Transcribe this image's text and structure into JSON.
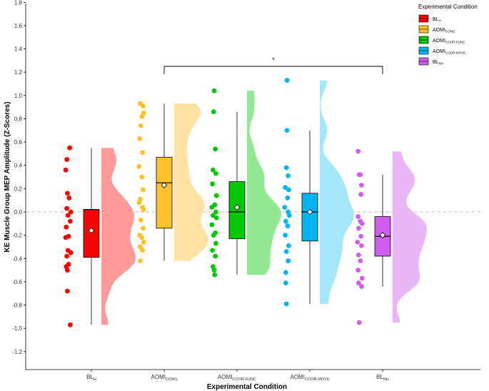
{
  "chart_data": {
    "type": "raincloud",
    "xlabel": "Experimental Condition",
    "ylabel": "KE Muscle Group MEP Amplitude (Z-Scores)",
    "ylim": [
      -1.35,
      1.8
    ],
    "yticks": [
      "-1.2",
      "-1.0",
      "-0.8",
      "-0.6",
      "-0.4",
      "-0.2",
      "0.0",
      "0.2",
      "0.4",
      "0.6",
      "0.8",
      "1.0",
      "1.2",
      "1.4",
      "1.6",
      "1.8"
    ],
    "reference_line": 0.0,
    "legend": {
      "title": "Experimental Condition",
      "position": "top-right"
    },
    "significance": {
      "label": "*",
      "from": "AOMI_CONG",
      "to": "BL_NH",
      "y": 1.25
    },
    "groups": [
      {
        "id": "BL_H",
        "label_main": "BL",
        "label_sub": "H",
        "color": "#ff0000",
        "cloud_color": "#ff9a9a",
        "box": {
          "min": -0.97,
          "q1": -0.39,
          "median": 0.02,
          "q3": 0.02,
          "max": 0.55,
          "mean": -0.16
        },
        "points": [
          0.55,
          0.45,
          0.36,
          0.16,
          0.12,
          0.03,
          0.0,
          -0.03,
          -0.08,
          -0.13,
          -0.21,
          -0.22,
          -0.33,
          -0.35,
          -0.38,
          -0.45,
          -0.47,
          -0.5,
          -0.68,
          -0.97
        ],
        "jitter": [
          0.02,
          -0.03,
          -0.05,
          -0.02,
          0.01,
          -0.03,
          0.04,
          -0.01,
          0.03,
          -0.04,
          0.0,
          -0.05,
          -0.01,
          0.04,
          -0.03,
          0.0,
          -0.04,
          -0.02,
          -0.02,
          0.03
        ]
      },
      {
        "id": "AOMI_CONG",
        "label_main": "AOMI",
        "label_sub": "CONG",
        "color": "#ffc12b",
        "cloud_color": "#ffe1a3",
        "box": {
          "min": -0.42,
          "q1": -0.14,
          "median": 0.25,
          "q3": 0.47,
          "max": 0.93,
          "mean": 0.23
        },
        "points": [
          0.93,
          0.91,
          0.85,
          0.82,
          0.74,
          0.63,
          0.51,
          0.39,
          0.3,
          0.19,
          0.11,
          0.08,
          0.04,
          0.02,
          -0.07,
          -0.14,
          -0.2,
          -0.22,
          -0.26,
          -0.3,
          -0.33,
          -0.42
        ],
        "jitter": [
          -0.02,
          0.03,
          0.04,
          0.01,
          -0.01,
          -0.03,
          0.02,
          -0.04,
          0.01,
          0.03,
          -0.02,
          -0.04,
          0.02,
          0.04,
          -0.01,
          0.03,
          -0.03,
          0.01,
          0.04,
          -0.02,
          0.02,
          -0.02
        ]
      },
      {
        "id": "AOMI_COOR_FUNC",
        "label_main": "AOMI",
        "label_sub": "COOR-FUNC",
        "color": "#00c800",
        "cloud_color": "#93e993",
        "box": {
          "min": -0.54,
          "q1": -0.23,
          "median": 0.0,
          "q3": 0.26,
          "max": 0.86,
          "mean": 0.04
        },
        "points": [
          1.04,
          0.86,
          0.54,
          0.36,
          0.33,
          0.24,
          0.14,
          0.06,
          0.04,
          0.0,
          -0.03,
          -0.05,
          -0.11,
          -0.18,
          -0.2,
          -0.27,
          -0.33,
          -0.38,
          -0.47,
          -0.5,
          -0.54
        ],
        "jitter": [
          0.0,
          -0.01,
          0.02,
          -0.02,
          0.03,
          -0.03,
          0.04,
          0.01,
          -0.04,
          0.03,
          -0.02,
          0.04,
          -0.04,
          0.02,
          -0.01,
          0.03,
          -0.03,
          0.02,
          -0.02,
          0.0,
          0.01
        ]
      },
      {
        "id": "AOMI_COOR_MOVE",
        "label_main": "AOMI",
        "label_sub": "COOR-MOVE",
        "color": "#00b6f2",
        "cloud_color": "#a5e6fb",
        "box": {
          "min": -0.79,
          "q1": -0.25,
          "median": 0.0,
          "q3": 0.16,
          "max": 0.7,
          "mean": 0.0
        },
        "points": [
          1.13,
          0.7,
          0.38,
          0.31,
          0.21,
          0.19,
          0.12,
          0.04,
          0.0,
          -0.03,
          -0.08,
          -0.12,
          -0.2,
          -0.29,
          -0.34,
          -0.42,
          -0.52,
          -0.61,
          -0.79
        ],
        "jitter": [
          0.0,
          0.0,
          -0.01,
          0.02,
          -0.03,
          0.03,
          0.01,
          -0.04,
          0.02,
          0.04,
          -0.02,
          0.01,
          -0.03,
          0.03,
          -0.01,
          0.02,
          -0.02,
          -0.02,
          -0.01
        ]
      },
      {
        "id": "BL_NH",
        "label_main": "BL",
        "label_sub": "NH",
        "color": "#cf5ef0",
        "cloud_color": "#e8b6f5",
        "box": {
          "min": -0.64,
          "q1": -0.38,
          "median": -0.21,
          "q3": -0.04,
          "max": 0.32,
          "mean": -0.2
        },
        "points": [
          0.52,
          0.32,
          0.32,
          0.23,
          0.15,
          -0.04,
          -0.08,
          -0.1,
          -0.14,
          -0.21,
          -0.26,
          -0.29,
          -0.37,
          -0.42,
          -0.5,
          -0.57,
          -0.61,
          -0.64,
          -0.95
        ],
        "jitter": [
          -0.03,
          -0.01,
          0.01,
          0.03,
          0.02,
          -0.03,
          0.01,
          0.04,
          -0.02,
          0.02,
          -0.04,
          0.03,
          -0.02,
          0.01,
          -0.03,
          0.04,
          -0.02,
          0.03,
          -0.01
        ]
      }
    ]
  }
}
